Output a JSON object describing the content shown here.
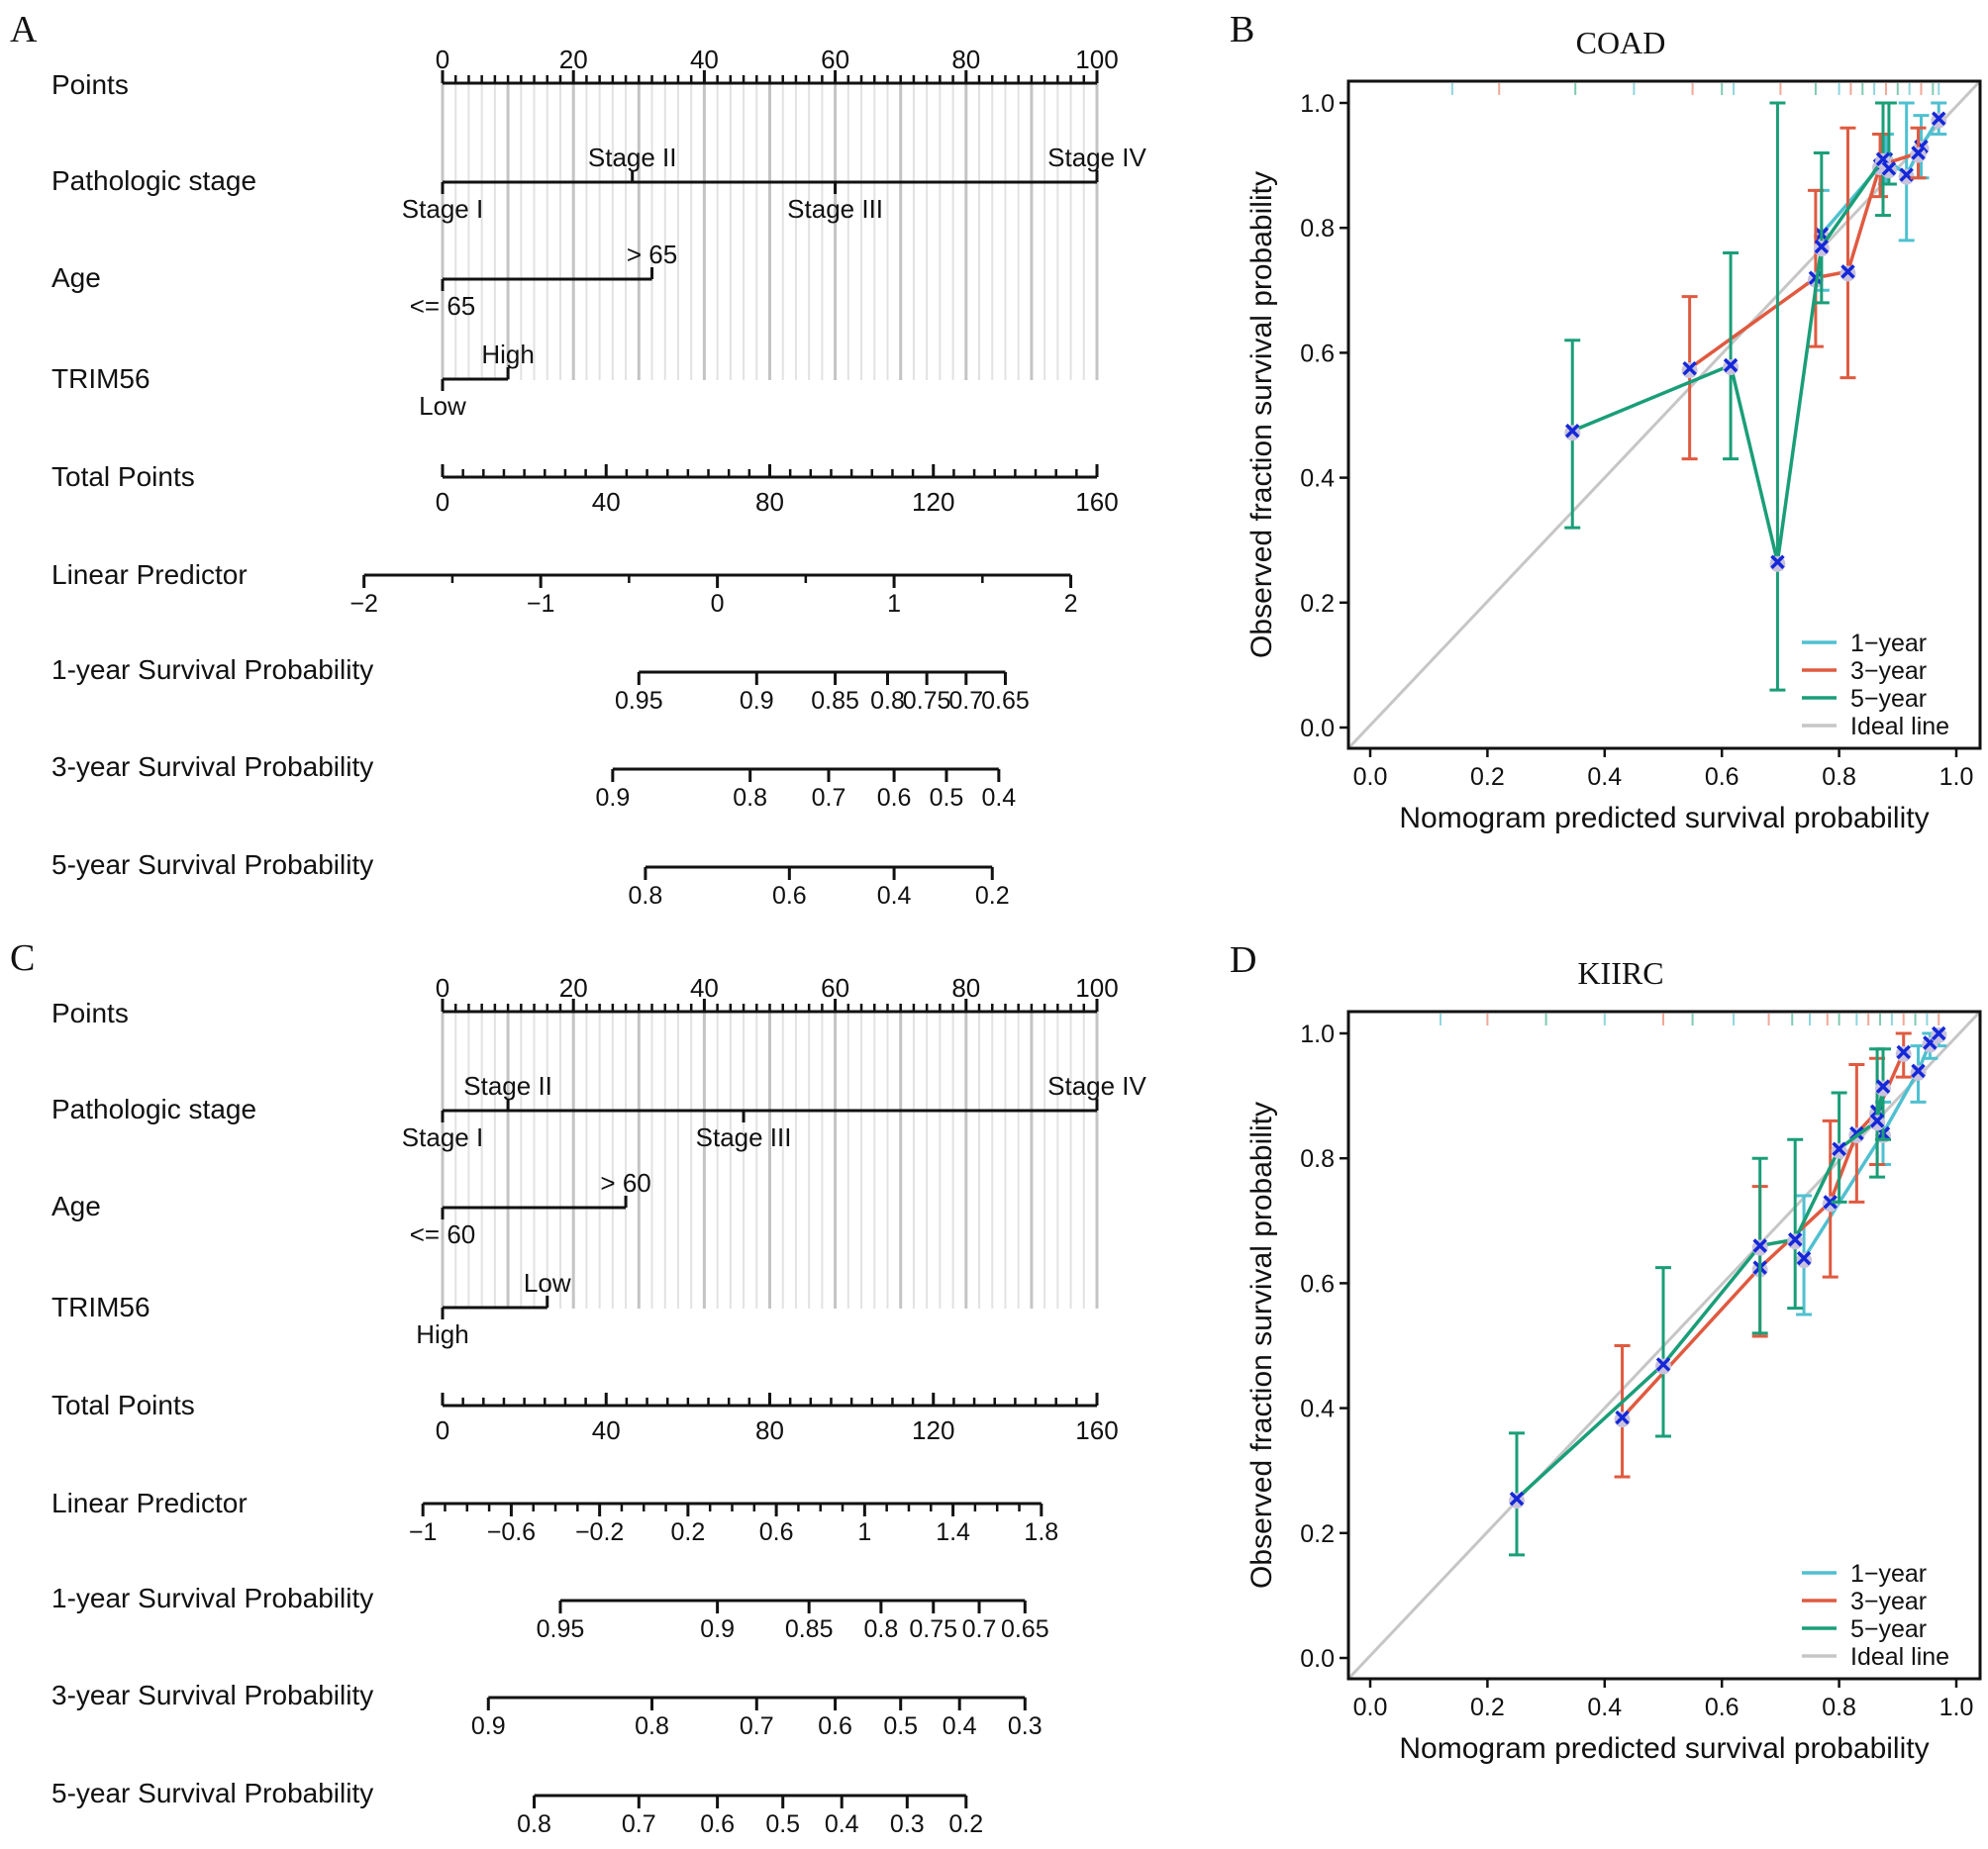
{
  "panel_letters": [
    "A",
    "B",
    "C",
    "D"
  ],
  "chart_data": [
    {
      "type": "nomogram",
      "panel": "A",
      "dataset": "COAD",
      "rows": [
        {
          "label": "Points",
          "kind": "points",
          "range": [
            0,
            100
          ],
          "ticks": [
            0,
            20,
            40,
            60,
            80,
            100
          ],
          "minor_step": 2
        },
        {
          "label": "Pathologic stage",
          "kind": "categorical",
          "levels": [
            {
              "name": "Stage I",
              "points": 0,
              "side": "below"
            },
            {
              "name": "Stage II",
              "points": 29,
              "side": "above"
            },
            {
              "name": "Stage III",
              "points": 60,
              "side": "below"
            },
            {
              "name": "Stage IV",
              "points": 100,
              "side": "above"
            }
          ]
        },
        {
          "label": "Age",
          "kind": "categorical",
          "levels": [
            {
              "name": "<= 65",
              "points": 0,
              "side": "below"
            },
            {
              "name": "> 65",
              "points": 32,
              "side": "above"
            }
          ]
        },
        {
          "label": "TRIM56",
          "kind": "categorical",
          "levels": [
            {
              "name": "Low",
              "points": 0,
              "side": "below"
            },
            {
              "name": "High",
              "points": 10,
              "side": "above"
            }
          ]
        },
        {
          "label": "Total Points",
          "kind": "total",
          "range": [
            0,
            160
          ],
          "ticks": [
            0,
            40,
            80,
            120,
            160
          ],
          "minor_step": 5
        },
        {
          "label": "Linear Predictor",
          "kind": "scale",
          "ticks": [
            {
              "label": "-2",
              "points": -12
            },
            {
              "label": "-1",
              "points": 15
            },
            {
              "label": "0",
              "points": 42
            },
            {
              "label": "1",
              "points": 69
            },
            {
              "label": "2",
              "points": 96
            }
          ],
          "minor_between": 1
        },
        {
          "label": "1-year Survival Probability",
          "kind": "scale",
          "ticks": [
            {
              "label": "0.95",
              "points": 30
            },
            {
              "label": "0.9",
              "points": 48
            },
            {
              "label": "0.85",
              "points": 60
            },
            {
              "label": "0.8",
              "points": 68
            },
            {
              "label": "0.75",
              "points": 74
            },
            {
              "label": "0.7",
              "points": 80
            },
            {
              "label": "0.65",
              "points": 86
            }
          ]
        },
        {
          "label": "3-year Survival Probability",
          "kind": "scale",
          "ticks": [
            {
              "label": "0.9",
              "points": 26
            },
            {
              "label": "0.8",
              "points": 47
            },
            {
              "label": "0.7",
              "points": 59
            },
            {
              "label": "0.6",
              "points": 69
            },
            {
              "label": "0.5",
              "points": 77
            },
            {
              "label": "0.4",
              "points": 85
            }
          ]
        },
        {
          "label": "5-year Survival Probability",
          "kind": "scale",
          "ticks": [
            {
              "label": "0.8",
              "points": 31
            },
            {
              "label": "0.6",
              "points": 53
            },
            {
              "label": "0.4",
              "points": 69
            },
            {
              "label": "0.2",
              "points": 84
            }
          ]
        }
      ]
    },
    {
      "type": "line",
      "panel": "B",
      "title": "COAD",
      "xlabel": "Nomogram predicted survival probability",
      "ylabel": "Observed fraction survival probability",
      "xlim": [
        0,
        1
      ],
      "ylim": [
        0,
        1
      ],
      "xticks": [
        "0.0",
        "0.2",
        "0.4",
        "0.6",
        "0.8",
        "1.0"
      ],
      "yticks": [
        "0.0",
        "0.2",
        "0.4",
        "0.6",
        "0.8",
        "1.0"
      ],
      "legend_position": "bottom-right",
      "legend": [
        "1-year",
        "3-year",
        "5-year",
        "Ideal line"
      ],
      "series": [
        {
          "name": "1-year",
          "color": "#4fc0d0",
          "points": [
            {
              "x": 0.77,
              "y": 0.79,
              "lo": 0.7,
              "hi": 0.86
            },
            {
              "x": 0.88,
              "y": 0.91,
              "lo": 0.87,
              "hi": 0.95
            },
            {
              "x": 0.915,
              "y": 0.885,
              "lo": 0.78,
              "hi": 1.0
            },
            {
              "x": 0.94,
              "y": 0.93,
              "lo": 0.88,
              "hi": 0.98
            },
            {
              "x": 0.97,
              "y": 0.975,
              "lo": 0.95,
              "hi": 1.0
            }
          ]
        },
        {
          "name": "3-year",
          "color": "#e05a40",
          "points": [
            {
              "x": 0.545,
              "y": 0.575,
              "lo": 0.43,
              "hi": 0.69
            },
            {
              "x": 0.76,
              "y": 0.72,
              "lo": 0.61,
              "hi": 0.86
            },
            {
              "x": 0.815,
              "y": 0.73,
              "lo": 0.56,
              "hi": 0.96
            },
            {
              "x": 0.87,
              "y": 0.9,
              "lo": 0.85,
              "hi": 0.95
            },
            {
              "x": 0.935,
              "y": 0.92,
              "lo": 0.88,
              "hi": 0.96
            }
          ]
        },
        {
          "name": "5-year",
          "color": "#1a9e78",
          "points": [
            {
              "x": 0.345,
              "y": 0.475,
              "lo": 0.32,
              "hi": 0.62
            },
            {
              "x": 0.615,
              "y": 0.58,
              "lo": 0.43,
              "hi": 0.76
            },
            {
              "x": 0.695,
              "y": 0.265,
              "lo": 0.06,
              "hi": 1.0
            },
            {
              "x": 0.77,
              "y": 0.77,
              "lo": 0.68,
              "hi": 0.92
            },
            {
              "x": 0.875,
              "y": 0.91,
              "lo": 0.82,
              "hi": 1.0
            },
            {
              "x": 0.885,
              "y": 0.895,
              "lo": 0.87,
              "hi": 1.0
            }
          ]
        }
      ],
      "rug_x": [
        0.14,
        0.22,
        0.35,
        0.45,
        0.55,
        0.6,
        0.62,
        0.7,
        0.76,
        0.8,
        0.82,
        0.84,
        0.86,
        0.88,
        0.9,
        0.92,
        0.94,
        0.96,
        0.97
      ]
    },
    {
      "type": "nomogram",
      "panel": "C",
      "dataset": "KIRC",
      "rows": [
        {
          "label": "Points",
          "kind": "points",
          "range": [
            0,
            100
          ],
          "ticks": [
            0,
            20,
            40,
            60,
            80,
            100
          ],
          "minor_step": 2
        },
        {
          "label": "Pathologic stage",
          "kind": "categorical",
          "levels": [
            {
              "name": "Stage I",
              "points": 0,
              "side": "below"
            },
            {
              "name": "Stage II",
              "points": 10,
              "side": "above"
            },
            {
              "name": "Stage III",
              "points": 46,
              "side": "below"
            },
            {
              "name": "Stage IV",
              "points": 100,
              "side": "above"
            }
          ]
        },
        {
          "label": "Age",
          "kind": "categorical",
          "levels": [
            {
              "name": "<= 60",
              "points": 0,
              "side": "below"
            },
            {
              "name": "> 60",
              "points": 28,
              "side": "above"
            }
          ]
        },
        {
          "label": "TRIM56",
          "kind": "categorical",
          "levels": [
            {
              "name": "High",
              "points": 0,
              "side": "below"
            },
            {
              "name": "Low",
              "points": 16,
              "side": "above"
            }
          ]
        },
        {
          "label": "Total Points",
          "kind": "total",
          "range": [
            0,
            160
          ],
          "ticks": [
            0,
            40,
            80,
            120,
            160
          ],
          "minor_step": 5
        },
        {
          "label": "Linear Predictor",
          "kind": "scale",
          "ticks": [
            {
              "label": "-1",
              "points": -3
            },
            {
              "label": "-0.6",
              "points": 10.5
            },
            {
              "label": "-0.2",
              "points": 24
            },
            {
              "label": "0.2",
              "points": 37.5
            },
            {
              "label": "0.6",
              "points": 51
            },
            {
              "label": "1",
              "points": 64.5
            },
            {
              "label": "1.4",
              "points": 78
            },
            {
              "label": "1.8",
              "points": 91.5
            }
          ],
          "minor_between": 3
        },
        {
          "label": "1-year Survival Probability",
          "kind": "scale",
          "ticks": [
            {
              "label": "0.95",
              "points": 18
            },
            {
              "label": "0.9",
              "points": 42
            },
            {
              "label": "0.85",
              "points": 56
            },
            {
              "label": "0.8",
              "points": 67
            },
            {
              "label": "0.75",
              "points": 75
            },
            {
              "label": "0.7",
              "points": 82
            },
            {
              "label": "0.65",
              "points": 89
            }
          ]
        },
        {
          "label": "3-year Survival Probability",
          "kind": "scale",
          "ticks": [
            {
              "label": "0.9",
              "points": 7
            },
            {
              "label": "0.8",
              "points": 32
            },
            {
              "label": "0.7",
              "points": 48
            },
            {
              "label": "0.6",
              "points": 60
            },
            {
              "label": "0.5",
              "points": 70
            },
            {
              "label": "0.4",
              "points": 79
            },
            {
              "label": "0.3",
              "points": 89
            }
          ]
        },
        {
          "label": "5-year Survival Probability",
          "kind": "scale",
          "ticks": [
            {
              "label": "0.8",
              "points": 14
            },
            {
              "label": "0.7",
              "points": 30
            },
            {
              "label": "0.6",
              "points": 42
            },
            {
              "label": "0.5",
              "points": 52
            },
            {
              "label": "0.4",
              "points": 61
            },
            {
              "label": "0.3",
              "points": 71
            },
            {
              "label": "0.2",
              "points": 80
            }
          ]
        }
      ]
    },
    {
      "type": "line",
      "panel": "D",
      "title": "KIIRC",
      "xlabel": "Nomogram predicted survival probability",
      "ylabel": "Observed fraction survival probability",
      "xlim": [
        0,
        1
      ],
      "ylim": [
        0,
        1
      ],
      "xticks": [
        "0.0",
        "0.2",
        "0.4",
        "0.6",
        "0.8",
        "1.0"
      ],
      "yticks": [
        "0.0",
        "0.2",
        "0.4",
        "0.6",
        "0.8",
        "1.0"
      ],
      "legend_position": "bottom-right",
      "legend": [
        "1-year",
        "3-year",
        "5-year",
        "Ideal line"
      ],
      "series": [
        {
          "name": "1-year",
          "color": "#4fc0d0",
          "points": [
            {
              "x": 0.74,
              "y": 0.64,
              "lo": 0.55,
              "hi": 0.74
            },
            {
              "x": 0.875,
              "y": 0.84,
              "lo": 0.79,
              "hi": 0.89
            },
            {
              "x": 0.935,
              "y": 0.94,
              "lo": 0.89,
              "hi": 0.98
            },
            {
              "x": 0.955,
              "y": 0.985,
              "lo": 0.96,
              "hi": 1.0
            },
            {
              "x": 0.97,
              "y": 1.0,
              "lo": 0.98,
              "hi": 1.0
            }
          ]
        },
        {
          "name": "3-year",
          "color": "#e05a40",
          "points": [
            {
              "x": 0.43,
              "y": 0.385,
              "lo": 0.29,
              "hi": 0.5
            },
            {
              "x": 0.665,
              "y": 0.625,
              "lo": 0.515,
              "hi": 0.755
            },
            {
              "x": 0.785,
              "y": 0.73,
              "lo": 0.61,
              "hi": 0.86
            },
            {
              "x": 0.83,
              "y": 0.84,
              "lo": 0.73,
              "hi": 0.95
            },
            {
              "x": 0.865,
              "y": 0.875,
              "lo": 0.79,
              "hi": 0.96
            },
            {
              "x": 0.91,
              "y": 0.97,
              "lo": 0.93,
              "hi": 1.0
            }
          ]
        },
        {
          "name": "5-year",
          "color": "#1a9e78",
          "points": [
            {
              "x": 0.25,
              "y": 0.255,
              "lo": 0.165,
              "hi": 0.36
            },
            {
              "x": 0.5,
              "y": 0.47,
              "lo": 0.355,
              "hi": 0.625
            },
            {
              "x": 0.665,
              "y": 0.66,
              "lo": 0.52,
              "hi": 0.8
            },
            {
              "x": 0.725,
              "y": 0.67,
              "lo": 0.56,
              "hi": 0.83
            },
            {
              "x": 0.8,
              "y": 0.815,
              "lo": 0.73,
              "hi": 0.905
            },
            {
              "x": 0.865,
              "y": 0.86,
              "lo": 0.77,
              "hi": 0.975
            },
            {
              "x": 0.875,
              "y": 0.915,
              "lo": 0.83,
              "hi": 0.975
            }
          ]
        }
      ],
      "rug_x": [
        0.12,
        0.2,
        0.3,
        0.4,
        0.5,
        0.55,
        0.62,
        0.68,
        0.72,
        0.75,
        0.78,
        0.8,
        0.83,
        0.85,
        0.87,
        0.89,
        0.91,
        0.93,
        0.95,
        0.97
      ]
    }
  ]
}
